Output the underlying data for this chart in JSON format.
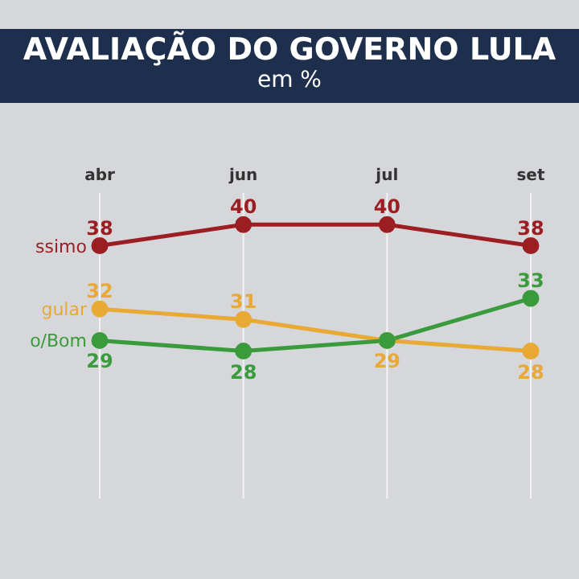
{
  "chart_data": {
    "type": "line",
    "title": "AVALIAÇÃO DO GOVERNO LULA",
    "subtitle": "em %",
    "categories": [
      "abr",
      "jun",
      "jul",
      "set"
    ],
    "series": [
      {
        "name": "ssimo",
        "color": "#9b1f22",
        "values": [
          38,
          40,
          40,
          38
        ],
        "value_labels": [
          "38",
          "40",
          "40",
          "38"
        ]
      },
      {
        "name": "gular",
        "color": "#e8a935",
        "values": [
          32,
          31,
          29,
          28
        ],
        "value_labels": [
          "32",
          "31",
          "29",
          "28"
        ]
      },
      {
        "name": "o/Bom",
        "color": "#3a9b3c",
        "values": [
          29,
          28,
          29,
          33
        ],
        "value_labels": [
          "29",
          "28",
          null,
          "33"
        ]
      }
    ],
    "grid": "x",
    "marker": "circle",
    "line_style": "solid"
  }
}
